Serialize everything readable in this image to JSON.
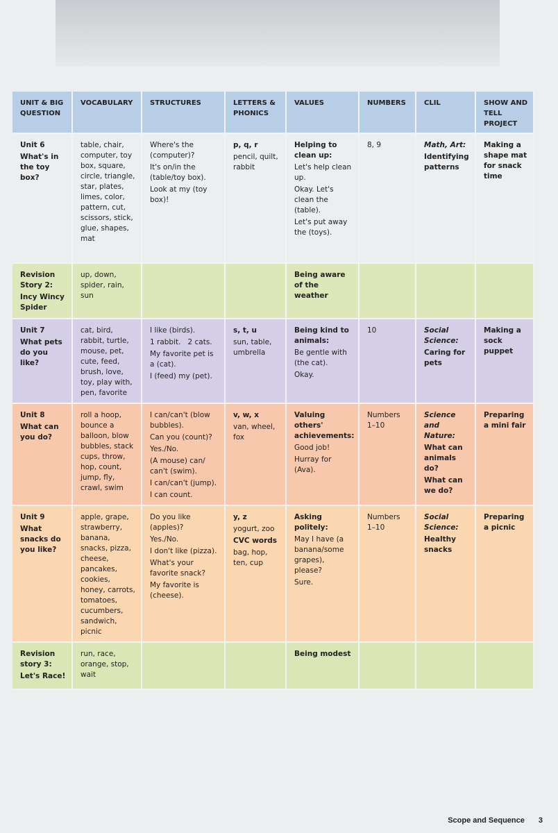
{
  "table": {
    "header": [
      "UNIT & BIG QUESTION",
      "VOCABULARY",
      "STRUCTURES",
      "LETTERS & PHONICS",
      "VALUES",
      "NUMBERS",
      "CLIL",
      "SHOW AND TELL PROJECT"
    ],
    "rows": [
      [
        [
          {
            "b": "Unit 6"
          },
          {
            "b": "What's in the toy box?"
          }
        ],
        [
          {
            "t": "table, chair, computer, toy box, square, circle, triangle, star, plates, limes, color, pattern, cut, scissors, stick, glue, shapes, mat"
          }
        ],
        [
          {
            "t": "Where's the (computer)?"
          },
          {
            "t": "It's on/in the (table/toy box)."
          },
          {
            "t": "Look at my (toy box)!"
          }
        ],
        [
          {
            "b": "p, q, r"
          },
          {
            "t": "pencil, quilt, rabbit"
          }
        ],
        [
          {
            "b": "Helping to clean up:"
          },
          {
            "t": "Let's help clean up."
          },
          {
            "t": "Okay. Let's clean the (table)."
          },
          {
            "t": "Let's put away the (toys)."
          }
        ],
        [
          {
            "t": "8, 9"
          }
        ],
        [
          {
            "i": "Math, Art:"
          },
          {
            "b": "Identifying patterns"
          }
        ],
        [
          {
            "b": "Making a shape mat for snack time"
          }
        ]
      ],
      [
        [
          {
            "b": "Revision Story 2:"
          },
          {
            "b": "Incy Wincy Spider"
          }
        ],
        [
          {
            "t": "up, down, spider, rain, sun"
          }
        ],
        [],
        [],
        [
          {
            "b": "Being aware of the weather"
          }
        ],
        [],
        [],
        []
      ],
      [
        [
          {
            "b": "Unit 7"
          },
          {
            "b": "What pets do you like?"
          }
        ],
        [
          {
            "t": "cat, bird, rabbit, turtle, mouse, pet, cute, feed, brush, love, toy, play with, pen, favorite"
          }
        ],
        [
          {
            "t": "I like (birds)."
          },
          {
            "t": "1 rabbit.   2 cats."
          },
          {
            "t": "My favorite pet is a (cat)."
          },
          {
            "t": "I (feed) my (pet)."
          }
        ],
        [
          {
            "b": "s, t, u"
          },
          {
            "t": "sun, table, umbrella"
          }
        ],
        [
          {
            "b": "Being kind to animals:"
          },
          {
            "t": "Be gentle with (the cat)."
          },
          {
            "t": "Okay."
          }
        ],
        [
          {
            "t": "10"
          }
        ],
        [
          {
            "i": "Social Science:"
          },
          {
            "b": "Caring for pets"
          }
        ],
        [
          {
            "b": "Making a sock puppet"
          }
        ]
      ],
      [
        [
          {
            "b": "Unit 8"
          },
          {
            "b": "What can you do?"
          }
        ],
        [
          {
            "t": "roll a hoop, bounce a balloon, blow bubbles, stack cups, throw, hop, count, jump, fly, crawl, swim"
          }
        ],
        [
          {
            "t": "I can/can't (blow bubbles)."
          },
          {
            "t": "Can you (count)?"
          },
          {
            "t": "Yes./No."
          },
          {
            "t": "(A mouse) can/ can't (swim)."
          },
          {
            "t": "I can/can't (jump)."
          },
          {
            "t": "I can count."
          }
        ],
        [
          {
            "b": "v, w, x"
          },
          {
            "t": "van, wheel, fox"
          }
        ],
        [
          {
            "b": "Valuing others' achievements:"
          },
          {
            "t": "Good job!"
          },
          {
            "t": "Hurray for (Ava)."
          }
        ],
        [
          {
            "t": "Numbers 1–10"
          }
        ],
        [
          {
            "i": "Science and Nature:"
          },
          {
            "b": "What can animals do?"
          },
          {
            "b": "What can we do?"
          }
        ],
        [
          {
            "b": "Preparing a mini fair"
          }
        ]
      ],
      [
        [
          {
            "b": "Unit 9"
          },
          {
            "b": "What snacks do you like?"
          }
        ],
        [
          {
            "t": "apple, grape, strawberry, banana, snacks, pizza, cheese, pancakes, cookies, honey, carrots, tomatoes, cucumbers, sandwich, picnic"
          }
        ],
        [
          {
            "t": "Do you like (apples)?"
          },
          {
            "t": "Yes./No."
          },
          {
            "t": "I don't like (pizza)."
          },
          {
            "t": "What's your favorite snack?"
          },
          {
            "t": "My favorite is (cheese)."
          }
        ],
        [
          {
            "b": "y, z"
          },
          {
            "t": "yogurt, zoo"
          },
          {
            "b": "CVC words"
          },
          {
            "t": "bag, hop, ten, cup"
          }
        ],
        [
          {
            "b": "Asking politely:"
          },
          {
            "t": "May I have (a banana/some grapes), please?"
          },
          {
            "t": "Sure."
          }
        ],
        [
          {
            "t": "Numbers 1–10"
          }
        ],
        [
          {
            "i": "Social Science:"
          },
          {
            "b": "Healthy snacks"
          }
        ],
        [
          {
            "b": "Preparing a picnic"
          }
        ]
      ],
      [
        [
          {
            "b": "Revision story 3:"
          },
          {
            "b": "Let's Race!"
          }
        ],
        [
          {
            "t": "run, race, orange, stop, wait"
          }
        ],
        [],
        [],
        [
          {
            "b": "Being modest"
          }
        ],
        [],
        [],
        []
      ]
    ]
  },
  "footer": {
    "section": "Scope and Sequence",
    "page": "3"
  }
}
